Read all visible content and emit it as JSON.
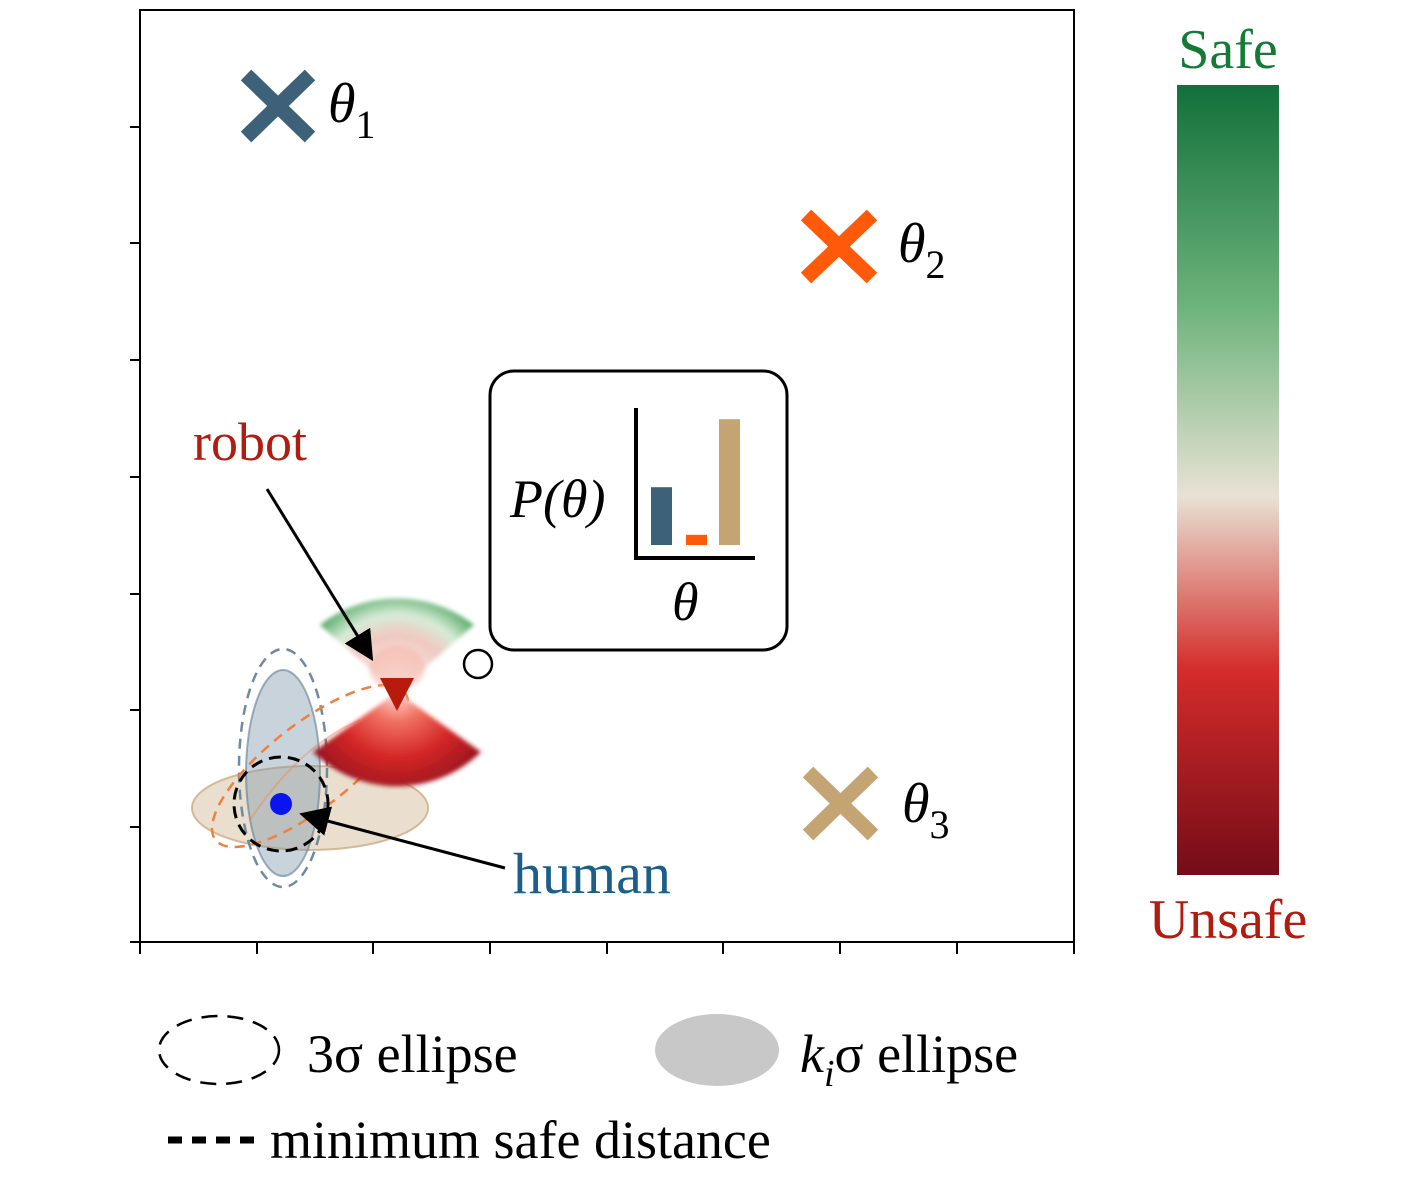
{
  "goals": [
    {
      "id": "theta1",
      "symbol": "θ",
      "subscript": "1",
      "color": "#3d6178"
    },
    {
      "id": "theta2",
      "symbol": "θ",
      "subscript": "2",
      "color": "#ff5a0a"
    },
    {
      "id": "theta3",
      "symbol": "θ",
      "subscript": "3",
      "color": "#c4a473"
    }
  ],
  "belief_inset": {
    "ylabel": "P(θ)",
    "xlabel": "θ",
    "probabilities": [
      0.34,
      0.06,
      0.74
    ],
    "colors": [
      "#3d6178",
      "#ff5a0a",
      "#c4a473"
    ]
  },
  "labels": {
    "robot": "robot",
    "human": "human",
    "robot_color": "#b01c10",
    "human_color": "#1b5e8a"
  },
  "colorbar": {
    "top_label": "Safe",
    "bottom_label": "Unsafe",
    "top_color": "#137b35",
    "bottom_color": "#b01c10"
  },
  "legend": {
    "three_sigma": "3σ ellipse",
    "ki_prefix": "k",
    "ki_sub": "i",
    "ki_suffix": "σ ellipse",
    "min_safe": "minimum safe distance"
  }
}
